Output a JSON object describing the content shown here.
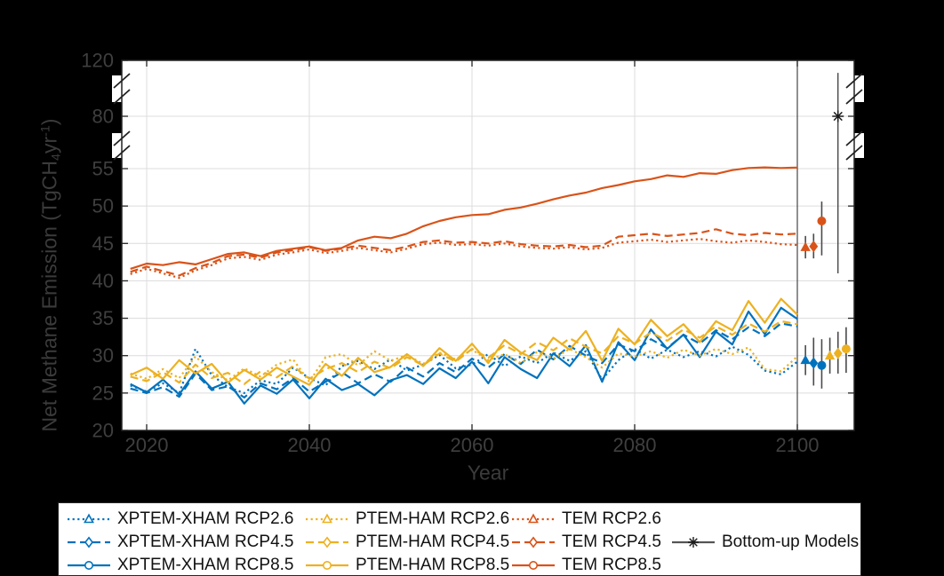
{
  "ui": {
    "colors": {
      "background": "#000000",
      "plot_background": "#ffffff",
      "grid": "#dcdcdc",
      "frame": "#222222",
      "tick_label": "#3f3f3f",
      "axis_label": "#3b3b3b",
      "reference_line": "#454545",
      "error_bar": "#4a4a4a",
      "legend_background": "#ffffff",
      "legend_text": "#111111",
      "blue": "#0072BD",
      "yellow": "#EDB120",
      "orange": "#D95319",
      "black_marker": "#1a1a1a"
    }
  },
  "chart_data": {
    "type": "line",
    "title": "",
    "xlabel": "Year",
    "ylabel": "Net Methane Emission (TgCH4yr-1)",
    "ylabel_parts": {
      "pre": "Net Methane Emission (TgCH",
      "sub": "4",
      "mid": "yr",
      "sup": "-1",
      "post": ")"
    },
    "x_ticks": [
      2020,
      2040,
      2060,
      2080,
      2100
    ],
    "y_ticks": [
      20,
      25,
      30,
      35,
      40,
      45,
      50,
      55,
      80,
      120
    ],
    "y_axis_breaks": [
      [
        55,
        80
      ],
      [
        80,
        120
      ]
    ],
    "x_range": [
      2017,
      2107
    ],
    "grid": true,
    "reference_line_x": 2100,
    "x": [
      2018,
      2020,
      2022,
      2024,
      2026,
      2028,
      2030,
      2032,
      2034,
      2036,
      2038,
      2040,
      2042,
      2044,
      2046,
      2048,
      2050,
      2052,
      2054,
      2056,
      2058,
      2060,
      2062,
      2064,
      2066,
      2068,
      2070,
      2072,
      2074,
      2076,
      2078,
      2080,
      2082,
      2084,
      2086,
      2088,
      2090,
      2092,
      2094,
      2096,
      2098,
      2100
    ],
    "series": [
      {
        "name": "XPTEM-XHAM RCP2.6",
        "color": "#0072BD",
        "line_style": "dotted",
        "marker": "triangle",
        "values": [
          26.0,
          25.2,
          26.3,
          25.0,
          30.9,
          27.4,
          25.8,
          25.0,
          26.7,
          26.2,
          28.4,
          27.0,
          26.0,
          28.6,
          29.3,
          28.2,
          29.5,
          28.0,
          28.8,
          30.1,
          28.3,
          28.8,
          30.2,
          28.6,
          29.9,
          29.0,
          30.4,
          29.3,
          30.6,
          26.8,
          29.4,
          30.9,
          29.6,
          30.8,
          29.8,
          30.6,
          29.9,
          31.2,
          30.1,
          28.0,
          27.5,
          29.2
        ]
      },
      {
        "name": "XPTEM-XHAM RCP4.5",
        "color": "#0072BD",
        "line_style": "dashed",
        "marker": "diamond",
        "values": [
          25.6,
          25.0,
          25.8,
          24.5,
          27.6,
          25.4,
          25.9,
          24.4,
          26.3,
          25.5,
          27.0,
          25.2,
          26.5,
          27.8,
          26.3,
          27.5,
          26.5,
          28.4,
          27.2,
          29.0,
          27.8,
          29.6,
          28.4,
          30.2,
          28.9,
          30.8,
          29.5,
          31.3,
          30.0,
          29.0,
          31.5,
          30.6,
          32.2,
          31.0,
          32.8,
          31.6,
          33.4,
          32.2,
          33.8,
          32.6,
          34.3,
          33.9
        ]
      },
      {
        "name": "XPTEM-XHAM RCP8.5",
        "color": "#0072BD",
        "line_style": "solid",
        "marker": "circle",
        "values": [
          26.2,
          25.1,
          26.8,
          24.8,
          27.9,
          25.6,
          26.5,
          23.6,
          26.0,
          24.9,
          26.8,
          24.3,
          26.9,
          25.4,
          26.2,
          24.7,
          26.7,
          27.4,
          26.2,
          28.3,
          27.0,
          29.2,
          26.3,
          29.8,
          28.2,
          27.0,
          30.3,
          28.6,
          31.4,
          26.5,
          31.8,
          29.4,
          33.5,
          30.9,
          32.8,
          29.8,
          33.2,
          31.5,
          35.9,
          32.9,
          36.4,
          34.9
        ]
      },
      {
        "name": "PTEM-HAM RCP2.6",
        "color": "#EDB120",
        "line_style": "dotted",
        "marker": "triangle",
        "values": [
          27.6,
          26.9,
          28.2,
          27.0,
          29.9,
          27.8,
          26.7,
          28.3,
          27.2,
          28.8,
          29.5,
          26.5,
          29.8,
          30.2,
          28.7,
          30.6,
          29.3,
          30.1,
          28.9,
          30.4,
          29.5,
          30.8,
          29.4,
          30.2,
          29.0,
          30.5,
          29.6,
          30.9,
          29.8,
          28.4,
          30.3,
          29.9,
          30.6,
          29.7,
          30.8,
          30.0,
          30.9,
          30.2,
          31.1,
          28.2,
          27.9,
          29.9
        ]
      },
      {
        "name": "PTEM-HAM RCP4.5",
        "color": "#EDB120",
        "line_style": "dashed",
        "marker": "diamond",
        "values": [
          27.2,
          26.6,
          27.8,
          26.4,
          28.8,
          27.0,
          27.7,
          26.2,
          27.9,
          27.1,
          28.6,
          26.9,
          28.2,
          29.0,
          27.8,
          29.2,
          28.3,
          29.8,
          28.7,
          30.3,
          29.2,
          30.9,
          29.7,
          31.4,
          30.2,
          31.8,
          30.7,
          32.3,
          31.2,
          30.3,
          32.6,
          31.6,
          33.1,
          32.0,
          33.5,
          32.4,
          33.9,
          32.8,
          34.3,
          33.2,
          34.6,
          34.2
        ]
      },
      {
        "name": "PTEM-HAM RCP8.5",
        "color": "#EDB120",
        "line_style": "solid",
        "marker": "circle",
        "values": [
          27.4,
          28.4,
          26.9,
          29.4,
          27.6,
          28.9,
          26.4,
          28.1,
          26.8,
          28.4,
          27.2,
          26.1,
          28.9,
          27.3,
          29.7,
          27.8,
          28.5,
          30.2,
          28.6,
          31.0,
          29.3,
          31.6,
          29.0,
          32.1,
          30.4,
          29.4,
          32.4,
          30.8,
          33.3,
          29.3,
          33.6,
          31.5,
          34.8,
          32.6,
          34.2,
          31.8,
          34.6,
          33.4,
          37.3,
          34.4,
          37.6,
          35.5
        ]
      },
      {
        "name": "TEM RCP2.6",
        "color": "#D95319",
        "line_style": "dotted",
        "marker": "triangle",
        "values": [
          40.9,
          41.6,
          41.0,
          40.4,
          41.4,
          42.1,
          43.0,
          43.2,
          42.8,
          43.5,
          43.8,
          44.2,
          43.7,
          44.0,
          44.4,
          44.1,
          43.8,
          44.3,
          44.9,
          45.1,
          44.8,
          44.9,
          44.7,
          45.0,
          44.6,
          44.4,
          44.3,
          44.5,
          44.2,
          44.4,
          45.1,
          45.3,
          45.5,
          45.2,
          45.4,
          45.6,
          45.3,
          45.1,
          45.4,
          45.2,
          44.9,
          44.8
        ]
      },
      {
        "name": "TEM RCP4.5",
        "color": "#D95319",
        "line_style": "dashed",
        "marker": "diamond",
        "values": [
          41.2,
          41.9,
          41.3,
          40.7,
          41.7,
          42.4,
          43.3,
          43.5,
          43.1,
          43.8,
          44.1,
          44.5,
          44.0,
          44.3,
          44.7,
          44.4,
          44.1,
          44.6,
          45.2,
          45.4,
          45.1,
          45.2,
          45.0,
          45.3,
          44.9,
          44.7,
          44.6,
          44.8,
          44.5,
          44.7,
          45.9,
          46.1,
          46.3,
          46.0,
          46.2,
          46.4,
          46.9,
          46.3,
          46.1,
          46.4,
          46.2,
          46.3
        ]
      },
      {
        "name": "TEM RCP8.5",
        "color": "#D95319",
        "line_style": "solid",
        "marker": "circle",
        "values": [
          41.6,
          42.3,
          42.1,
          42.5,
          42.2,
          42.9,
          43.6,
          43.8,
          43.3,
          44.0,
          44.3,
          44.6,
          44.1,
          44.4,
          45.4,
          45.9,
          45.7,
          46.3,
          47.3,
          48.0,
          48.5,
          48.8,
          48.9,
          49.5,
          49.8,
          50.3,
          50.9,
          51.4,
          51.8,
          52.4,
          52.8,
          53.3,
          53.6,
          54.1,
          53.9,
          54.4,
          54.3,
          54.8,
          55.3,
          55.6,
          55.3,
          55.5
        ]
      }
    ],
    "endpoint_summaries": [
      {
        "name": "XPTEM-XHAM RCP2.6",
        "x": 2101,
        "mean": 29.4,
        "low": 27.4,
        "high": 31.4,
        "color": "#0072BD",
        "marker": "triangle"
      },
      {
        "name": "XPTEM-XHAM RCP4.5",
        "x": 2102,
        "mean": 29.0,
        "low": 26.0,
        "high": 32.4,
        "color": "#0072BD",
        "marker": "diamond"
      },
      {
        "name": "XPTEM-XHAM RCP8.5",
        "x": 2103,
        "mean": 28.7,
        "low": 25.6,
        "high": 32.2,
        "color": "#0072BD",
        "marker": "circle"
      },
      {
        "name": "PTEM-HAM RCP2.6",
        "x": 2104,
        "mean": 30.0,
        "low": 27.6,
        "high": 32.4,
        "color": "#EDB120",
        "marker": "triangle"
      },
      {
        "name": "PTEM-HAM RCP4.5",
        "x": 2105,
        "mean": 30.3,
        "low": 27.6,
        "high": 33.2,
        "color": "#EDB120",
        "marker": "diamond"
      },
      {
        "name": "PTEM-HAM RCP8.5",
        "x": 2106,
        "mean": 30.9,
        "low": 27.7,
        "high": 33.8,
        "color": "#EDB120",
        "marker": "circle"
      },
      {
        "name": "TEM RCP2.6",
        "x": 2101,
        "mean": 44.5,
        "low": 43.0,
        "high": 46.0,
        "color": "#D95319",
        "marker": "triangle"
      },
      {
        "name": "TEM RCP4.5",
        "x": 2102,
        "mean": 44.6,
        "low": 43.0,
        "high": 46.3,
        "color": "#D95319",
        "marker": "diamond"
      },
      {
        "name": "TEM RCP8.5",
        "x": 2103,
        "mean": 48.0,
        "low": 43.4,
        "high": 50.6,
        "color": "#D95319",
        "marker": "circle"
      },
      {
        "name": "Bottom-up Models",
        "x": 2105,
        "mean": 80.0,
        "low": 41.0,
        "high": 111.0,
        "color": "#1a1a1a",
        "marker": "asterisk"
      }
    ]
  },
  "legend": {
    "items": [
      {
        "label": "XPTEM-XHAM RCP2.6",
        "color": "#0072BD",
        "line_style": "dotted",
        "marker": "triangle",
        "col": 0,
        "row": 0
      },
      {
        "label": "XPTEM-XHAM RCP4.5",
        "color": "#0072BD",
        "line_style": "dashed",
        "marker": "diamond",
        "col": 0,
        "row": 1
      },
      {
        "label": "XPTEM-XHAM RCP8.5",
        "color": "#0072BD",
        "line_style": "solid",
        "marker": "circle",
        "col": 0,
        "row": 2
      },
      {
        "label": "PTEM-HAM RCP2.6",
        "color": "#EDB120",
        "line_style": "dotted",
        "marker": "triangle",
        "col": 1,
        "row": 0
      },
      {
        "label": "PTEM-HAM RCP4.5",
        "color": "#EDB120",
        "line_style": "dashed",
        "marker": "diamond",
        "col": 1,
        "row": 1
      },
      {
        "label": "PTEM-HAM RCP8.5",
        "color": "#EDB120",
        "line_style": "solid",
        "marker": "circle",
        "col": 1,
        "row": 2
      },
      {
        "label": "TEM RCP2.6",
        "color": "#D95319",
        "line_style": "dotted",
        "marker": "triangle",
        "col": 2,
        "row": 0
      },
      {
        "label": "TEM RCP4.5",
        "color": "#D95319",
        "line_style": "dashed",
        "marker": "diamond",
        "col": 2,
        "row": 1
      },
      {
        "label": "TEM RCP8.5",
        "color": "#D95319",
        "line_style": "solid",
        "marker": "circle",
        "col": 2,
        "row": 2
      },
      {
        "label": "Bottom-up Models",
        "color": "#1a1a1a",
        "line_style": "solid",
        "marker": "asterisk",
        "col": 3,
        "row": 1
      }
    ]
  }
}
